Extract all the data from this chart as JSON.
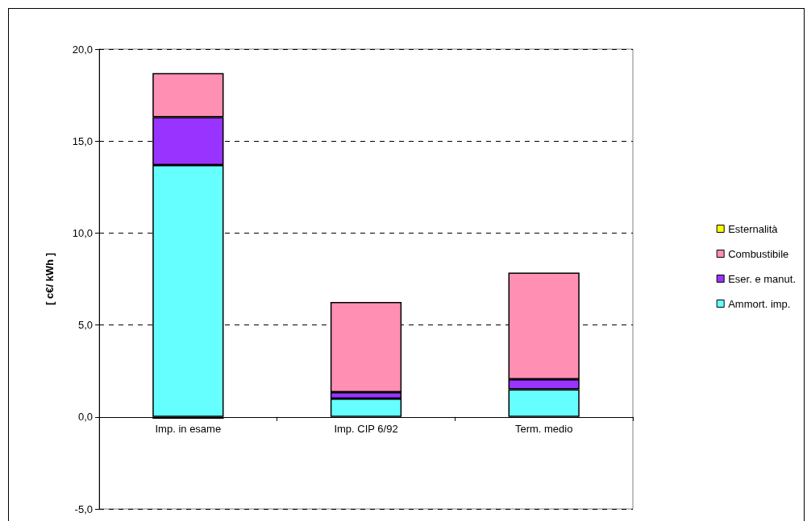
{
  "chart_data": {
    "type": "bar",
    "ylabel": "[ c€/ kWh ]",
    "categories": [
      "Imp. in esame",
      "Imp. CIP 6/92",
      "Term. medio"
    ],
    "series": [
      {
        "name": "Ammort. imp.",
        "color": "#66ffff",
        "values": [
          13.7,
          1.0,
          1.5
        ]
      },
      {
        "name": "Eser. e manut.",
        "color": "#9933ff",
        "values": [
          2.6,
          0.35,
          0.55
        ]
      },
      {
        "name": "Combustibile",
        "color": "#ff8fb3",
        "values": [
          2.4,
          4.9,
          5.8
        ]
      },
      {
        "name": "Esternalità",
        "color": "#ffff00",
        "values": [
          -0.1,
          null,
          null
        ]
      }
    ],
    "stacked": true,
    "ylim": [
      -5,
      20
    ],
    "yticks": [
      {
        "value": -5,
        "label": "-5,0"
      },
      {
        "value": 0,
        "label": "0,0"
      },
      {
        "value": 5,
        "label": "5,0"
      },
      {
        "value": 10,
        "label": "10,0"
      },
      {
        "value": 15,
        "label": "15,0"
      },
      {
        "value": 20,
        "label": "20,0"
      }
    ],
    "grid": "y",
    "legend": "right"
  }
}
